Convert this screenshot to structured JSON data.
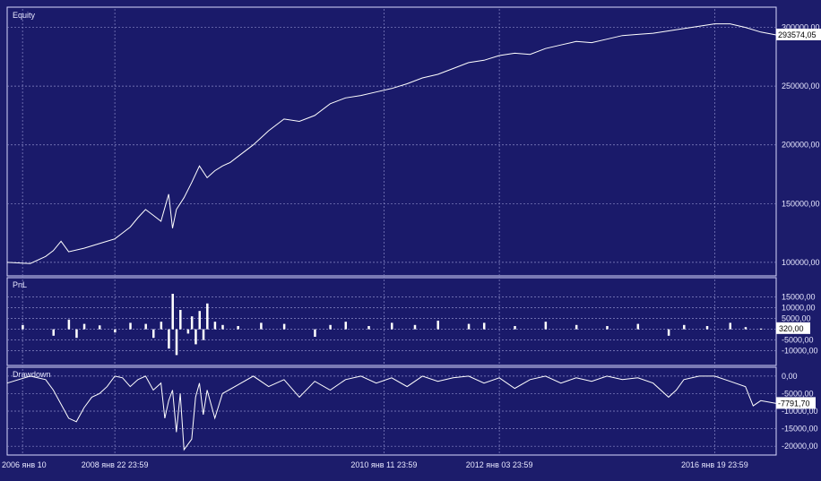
{
  "chart_data": [
    {
      "type": "line",
      "title": "Equity",
      "ylim": [
        90000,
        305000
      ],
      "yticks": [
        100000,
        150000,
        200000,
        250000,
        300000
      ],
      "ytick_labels": [
        "100000,00",
        "150000,00",
        "200000,00",
        "250000,00",
        "300000,00"
      ],
      "last_value": 293574.05,
      "last_label": "293574,05",
      "grid": true,
      "series": [
        {
          "x": [
            0.0,
            0.03,
            0.05,
            0.06,
            0.07,
            0.08,
            0.1,
            0.12,
            0.14,
            0.15,
            0.16,
            0.17,
            0.18,
            0.19,
            0.2,
            0.21,
            0.215,
            0.22,
            0.23,
            0.24,
            0.25,
            0.26,
            0.27,
            0.28,
            0.29,
            0.3,
            0.32,
            0.34,
            0.36,
            0.38,
            0.4,
            0.42,
            0.44,
            0.46,
            0.48,
            0.5,
            0.52,
            0.54,
            0.56,
            0.58,
            0.6,
            0.62,
            0.64,
            0.66,
            0.68,
            0.7,
            0.72,
            0.74,
            0.76,
            0.78,
            0.8,
            0.82,
            0.84,
            0.86,
            0.88,
            0.9,
            0.92,
            0.94,
            0.96,
            0.98,
            1.0
          ],
          "values": [
            100000,
            99000,
            105000,
            110000,
            118000,
            109000,
            112000,
            116000,
            120000,
            125000,
            130000,
            138000,
            145000,
            140000,
            135000,
            158000,
            129000,
            145000,
            155000,
            168000,
            182000,
            172000,
            178000,
            182000,
            185000,
            190000,
            200000,
            212000,
            222000,
            220000,
            225000,
            235000,
            240000,
            242000,
            245000,
            248000,
            252000,
            257000,
            260000,
            265000,
            270000,
            272000,
            276000,
            278000,
            277000,
            282000,
            285000,
            288000,
            287000,
            290000,
            293000,
            294000,
            295000,
            297000,
            299000,
            301000,
            303000,
            303000,
            300000,
            296000,
            293574
          ]
        }
      ]
    },
    {
      "type": "bar",
      "title": "PnL",
      "ylim": [
        -16000,
        19000
      ],
      "yticks": [
        -10000,
        -5000,
        0,
        5000,
        10000,
        15000
      ],
      "ytick_labels": [
        "-10000,00",
        "-5000,00",
        "0,00",
        "5000,00",
        "10000,00",
        "15000,00"
      ],
      "last_value": 320,
      "last_label": "320,00",
      "grid": true,
      "series": [
        {
          "x": [
            0.02,
            0.06,
            0.08,
            0.09,
            0.1,
            0.12,
            0.14,
            0.16,
            0.18,
            0.19,
            0.2,
            0.21,
            0.215,
            0.22,
            0.225,
            0.235,
            0.24,
            0.245,
            0.25,
            0.255,
            0.26,
            0.27,
            0.28,
            0.3,
            0.33,
            0.36,
            0.4,
            0.42,
            0.44,
            0.47,
            0.5,
            0.53,
            0.56,
            0.6,
            0.62,
            0.66,
            0.7,
            0.74,
            0.78,
            0.82,
            0.86,
            0.88,
            0.91,
            0.94,
            0.96,
            0.98
          ],
          "values": [
            2000,
            -3000,
            4500,
            -4000,
            2500,
            1800,
            -1500,
            3000,
            2500,
            -4000,
            3500,
            -9000,
            16500,
            -12000,
            9000,
            -2000,
            6000,
            -7000,
            8500,
            -5000,
            12000,
            3500,
            2000,
            1500,
            3000,
            2500,
            -3500,
            2000,
            3500,
            1500,
            3000,
            2000,
            4000,
            2500,
            3000,
            1500,
            3500,
            2000,
            1500,
            2500,
            -3000,
            2000,
            1500,
            3000,
            1000,
            320
          ]
        }
      ]
    },
    {
      "type": "area",
      "title": "Drawdown",
      "ylim": [
        -22000,
        1500
      ],
      "yticks": [
        -20000,
        -15000,
        -10000,
        -5000,
        0
      ],
      "ytick_labels": [
        "-20000,00",
        "-15000,00",
        "-10000,00",
        "-5000,00",
        "0,00"
      ],
      "last_value": -7791.7,
      "last_label": "-7791,70",
      "grid": true,
      "series": [
        {
          "x": [
            0.0,
            0.03,
            0.05,
            0.06,
            0.07,
            0.08,
            0.09,
            0.1,
            0.11,
            0.12,
            0.13,
            0.14,
            0.15,
            0.16,
            0.17,
            0.18,
            0.19,
            0.2,
            0.205,
            0.21,
            0.215,
            0.22,
            0.225,
            0.23,
            0.24,
            0.245,
            0.25,
            0.255,
            0.26,
            0.27,
            0.28,
            0.3,
            0.32,
            0.34,
            0.36,
            0.38,
            0.4,
            0.42,
            0.44,
            0.46,
            0.48,
            0.5,
            0.52,
            0.54,
            0.56,
            0.58,
            0.6,
            0.62,
            0.64,
            0.66,
            0.68,
            0.7,
            0.72,
            0.74,
            0.76,
            0.78,
            0.8,
            0.82,
            0.84,
            0.86,
            0.87,
            0.88,
            0.9,
            0.92,
            0.94,
            0.96,
            0.97,
            0.98,
            1.0
          ],
          "values": [
            -2000,
            0,
            -1000,
            -4000,
            -8000,
            -12000,
            -13000,
            -9000,
            -6000,
            -5000,
            -3000,
            0,
            -500,
            -3000,
            -1000,
            0,
            -4000,
            -2000,
            -12000,
            -7000,
            -4000,
            -16000,
            -5000,
            -21000,
            -18000,
            -6000,
            -2000,
            -11000,
            -4000,
            -12000,
            -5000,
            -2500,
            0,
            -3000,
            -1000,
            -6000,
            -1500,
            -4000,
            -1000,
            0,
            -2000,
            -500,
            -3000,
            0,
            -1500,
            -500,
            0,
            -2000,
            -500,
            -3500,
            -1000,
            0,
            -2000,
            -500,
            -1500,
            0,
            -1000,
            -500,
            -2000,
            -6000,
            -4000,
            -1000,
            0,
            0,
            -1500,
            -3000,
            -8500,
            -7000,
            -7791.7
          ]
        }
      ]
    }
  ],
  "x_axis": {
    "tick_labels": [
      "2006 янв 10",
      "2008 янв 22 23:59",
      "2010 янв 11 23:59",
      "2012 янв 03 23:59",
      "2016 янв 19 23:59"
    ],
    "tick_positions": [
      0.02,
      0.14,
      0.49,
      0.64,
      0.92
    ]
  }
}
